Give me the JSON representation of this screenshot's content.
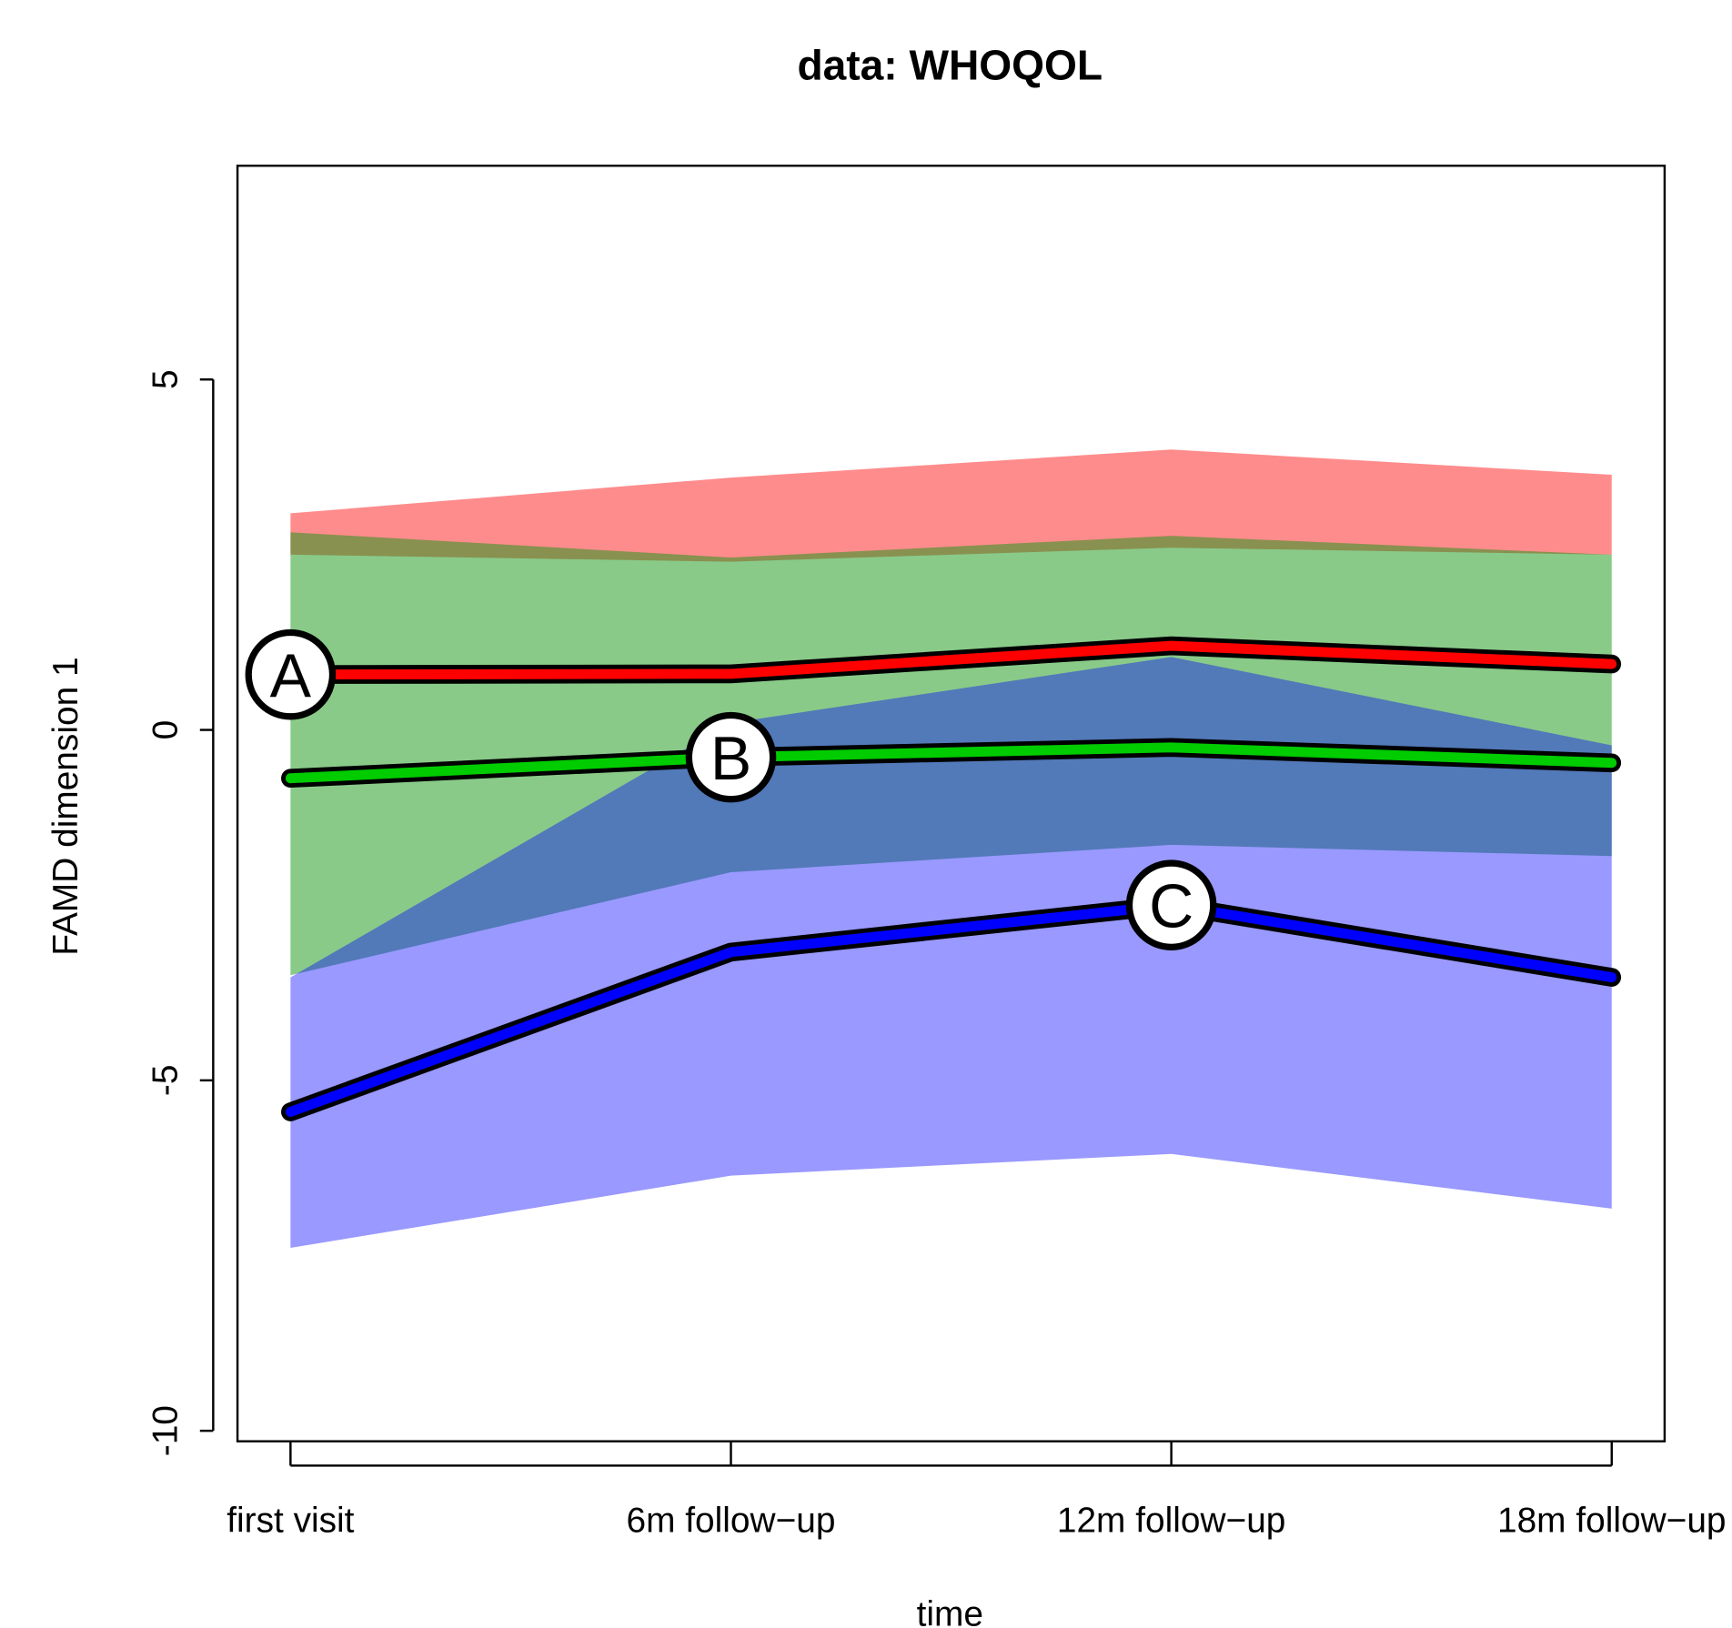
{
  "chart_data": {
    "type": "line",
    "title": "data: WHOQOL",
    "x_label": "time",
    "y_label": "FAMD dimension 1",
    "categories": [
      "first visit",
      "6m follow−up",
      "12m follow−up",
      "18m follow−up"
    ],
    "series": [
      {
        "name": "A",
        "color": "#ff0000",
        "band_color": "rgba(255,0,0,0.45)",
        "values": [
          0.79,
          0.8,
          1.2,
          0.94
        ],
        "upper": [
          3.09,
          3.6,
          4.0,
          3.64
        ],
        "lower": [
          2.5,
          2.4,
          2.6,
          2.5
        ]
      },
      {
        "name": "B",
        "color": "#00cc00",
        "band_color": "rgba(20,150,20,0.5)",
        "values": [
          -0.69,
          -0.39,
          -0.25,
          -0.47
        ],
        "upper": [
          2.82,
          2.46,
          2.77,
          2.5
        ],
        "lower": [
          -3.5,
          -2.03,
          -1.64,
          -1.8
        ]
      },
      {
        "name": "C",
        "color": "#0000ff",
        "band_color": "rgba(0,0,255,0.4)",
        "values": [
          -5.45,
          -3.17,
          -2.5,
          -3.53
        ],
        "upper": [
          -3.53,
          0.1,
          1.04,
          -0.22
        ],
        "lower": [
          -7.39,
          -6.36,
          -6.05,
          -6.83
        ]
      }
    ],
    "ylim": [
      -10.15,
      8.05
    ],
    "yticks": [
      -10,
      -5,
      0,
      5
    ]
  }
}
